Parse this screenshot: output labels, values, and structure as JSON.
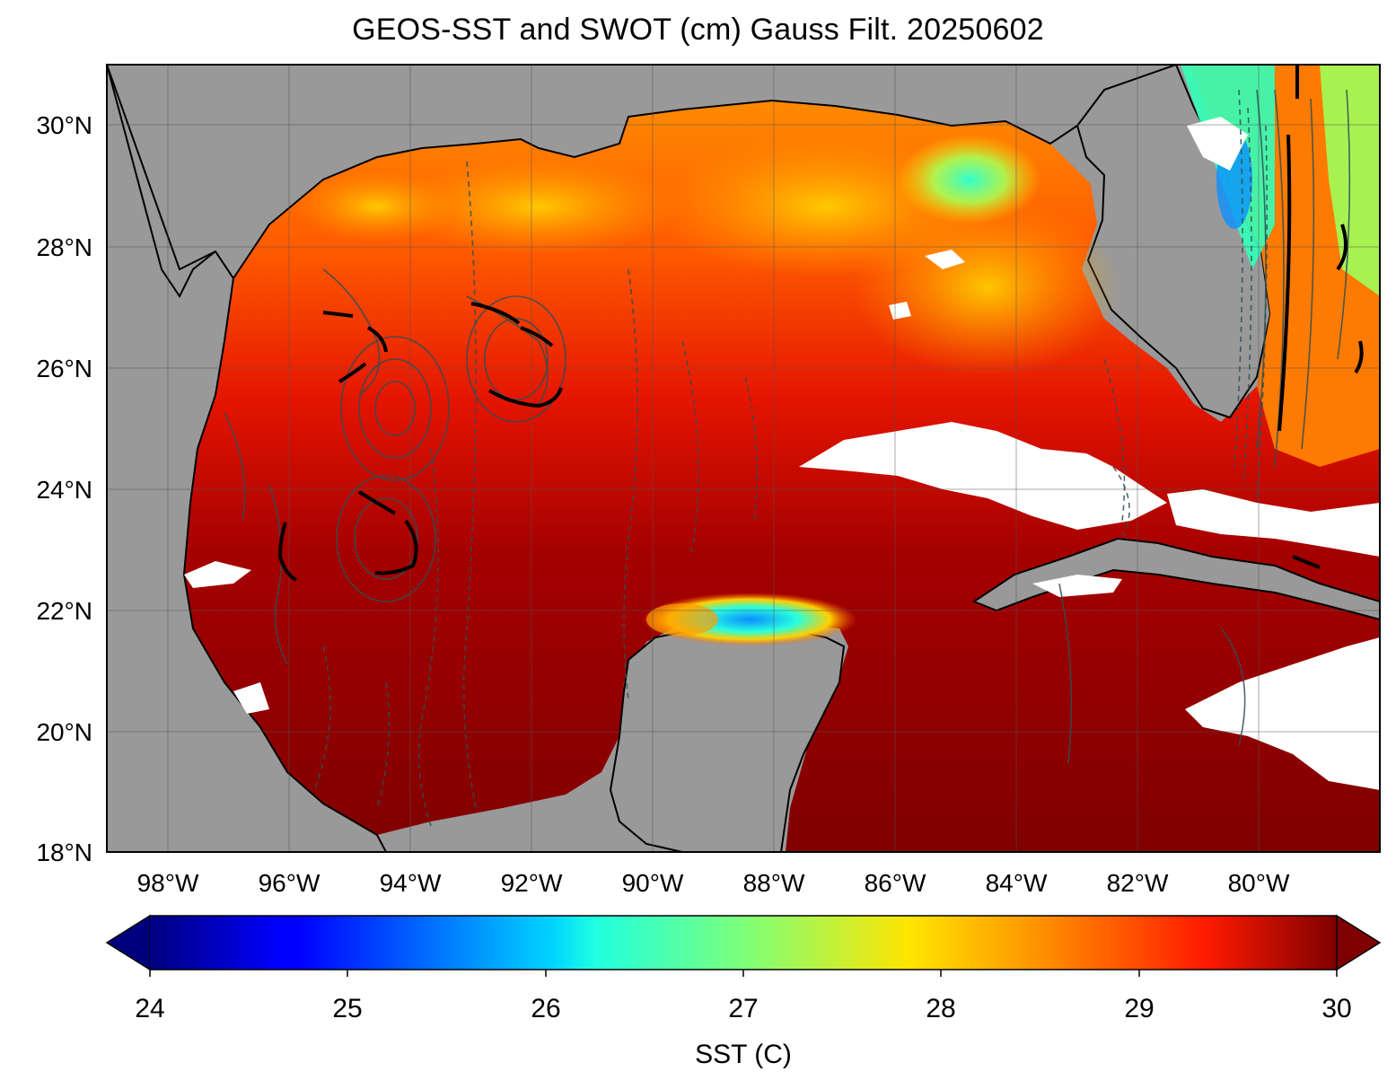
{
  "title": "GEOS-SST  and SWOT (cm) Gauss Filt. 20250602",
  "map": {
    "lon_range": [
      -99,
      -78.5
    ],
    "lat_range": [
      18,
      31
    ],
    "lat_ticks": [
      {
        "value": 30,
        "label": "30°N"
      },
      {
        "value": 28,
        "label": "28°N"
      },
      {
        "value": 26,
        "label": "26°N"
      },
      {
        "value": 24,
        "label": "24°N"
      },
      {
        "value": 22,
        "label": "22°N"
      },
      {
        "value": 20,
        "label": "20°N"
      },
      {
        "value": 18,
        "label": "18°N"
      }
    ],
    "lon_ticks": [
      {
        "value": -98,
        "label": "98°W"
      },
      {
        "value": -96,
        "label": "96°W"
      },
      {
        "value": -94,
        "label": "94°W"
      },
      {
        "value": -92,
        "label": "92°W"
      },
      {
        "value": -90,
        "label": "90°W"
      },
      {
        "value": -88,
        "label": "88°W"
      },
      {
        "value": -86,
        "label": "86°W"
      },
      {
        "value": -84,
        "label": "84°W"
      },
      {
        "value": -82,
        "label": "82°W"
      },
      {
        "value": -80,
        "label": "80°W"
      }
    ],
    "land_color": "#999999",
    "missing_color": "#ffffff"
  },
  "colorbar": {
    "label": "SST (C)",
    "min": 24,
    "max": 30,
    "ticks": [
      "24",
      "25",
      "26",
      "27",
      "28",
      "29",
      "30"
    ],
    "colormap": "jet",
    "extend": "both"
  }
}
